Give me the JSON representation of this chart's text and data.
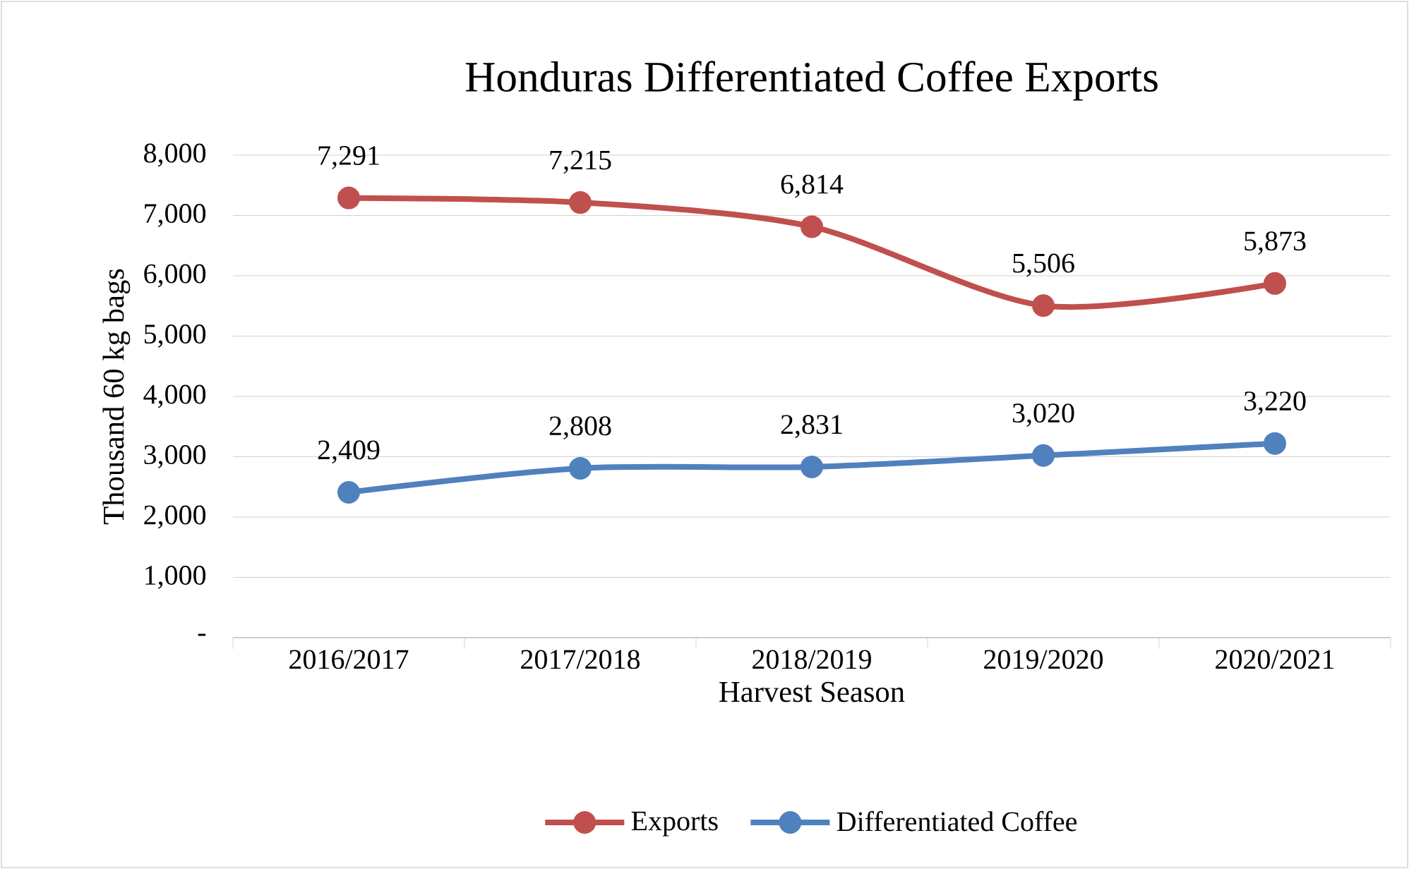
{
  "chart_data": {
    "type": "line",
    "title": "Honduras Differentiated Coffee Exports",
    "xlabel": "Harvest Season",
    "ylabel": "Thousand 60 kg bags",
    "categories": [
      "2016/2017",
      "2017/2018",
      "2018/2019",
      "2019/2020",
      "2020/2021"
    ],
    "series": [
      {
        "name": "Exports",
        "color": "#c0504d",
        "values": [
          7291,
          7215,
          6814,
          5506,
          5873
        ],
        "value_labels": [
          "7,291",
          "7,215",
          "6,814",
          "5,506",
          "5,873"
        ]
      },
      {
        "name": "Differentiated Coffee",
        "color": "#4f81bd",
        "values": [
          2409,
          2808,
          2831,
          3020,
          3220
        ],
        "value_labels": [
          "2,409",
          "2,808",
          "2,831",
          "3,020",
          "3,220"
        ]
      }
    ],
    "ylim": [
      0,
      8000
    ],
    "yticks": [
      {
        "value": 0,
        "label": "-"
      },
      {
        "value": 1000,
        "label": "1,000"
      },
      {
        "value": 2000,
        "label": "2,000"
      },
      {
        "value": 3000,
        "label": "3,000"
      },
      {
        "value": 4000,
        "label": "4,000"
      },
      {
        "value": 5000,
        "label": "5,000"
      },
      {
        "value": 6000,
        "label": "6,000"
      },
      {
        "value": 7000,
        "label": "7,000"
      },
      {
        "value": 8000,
        "label": "8,000"
      }
    ],
    "grid": "y",
    "legend": "bottom",
    "marker": "circle",
    "line_style": "solid"
  }
}
